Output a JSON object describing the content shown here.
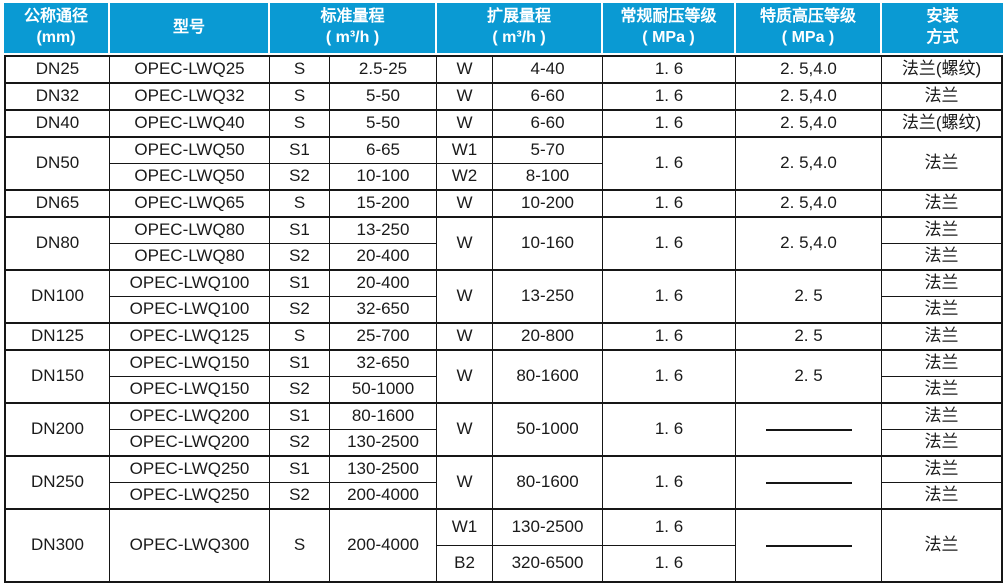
{
  "colors": {
    "header_bg": "#0a9ad3",
    "header_text": "#ffffff",
    "grid_border": "#161616",
    "body_text": "#1a1a1a"
  },
  "header": {
    "columns": [
      {
        "key": "diameter",
        "line1": "公称通径",
        "line2": "(mm)"
      },
      {
        "key": "model",
        "line1": "型号",
        "line2": ""
      },
      {
        "key": "std",
        "line1": "标准量程",
        "line2": "( m³/h )"
      },
      {
        "key": "ext",
        "line1": "扩展量程",
        "line2": "( m³/h )"
      },
      {
        "key": "normal",
        "line1": "常规耐压等级",
        "line2": "( MPa )"
      },
      {
        "key": "special",
        "line1": "特质高压等级",
        "line2": "( MPa )"
      },
      {
        "key": "install",
        "line1": "安装",
        "line2": "方式"
      }
    ]
  },
  "groups": [
    {
      "diameter": "DN25",
      "rows": [
        {
          "model": "OPEC-LWQ25",
          "std_code": "S",
          "std_range": "2.5-25",
          "ext_code": "W",
          "ext_range": "4-40",
          "normal": "1. 6",
          "special": "2. 5,4.0",
          "install": "法兰(螺纹)"
        }
      ]
    },
    {
      "diameter": "DN32",
      "rows": [
        {
          "model": "OPEC-LWQ32",
          "std_code": "S",
          "std_range": "5-50",
          "ext_code": "W",
          "ext_range": "6-60",
          "normal": "1. 6",
          "special": "2. 5,4.0",
          "install": "法兰"
        }
      ]
    },
    {
      "diameter": "DN40",
      "rows": [
        {
          "model": "OPEC-LWQ40",
          "std_code": "S",
          "std_range": "5-50",
          "ext_code": "W",
          "ext_range": "6-60",
          "normal": "1. 6",
          "special": "2. 5,4.0",
          "install": "法兰(螺纹)"
        }
      ]
    },
    {
      "diameter": "DN50",
      "rows": [
        {
          "model": "OPEC-LWQ50",
          "std_code": "S1",
          "std_range": "6-65",
          "ext_code": "W1",
          "ext_range": "5-70",
          "normal": "1. 6",
          "special": "2. 5,4.0",
          "install": "法兰"
        },
        {
          "model": "OPEC-LWQ50",
          "std_code": "S2",
          "std_range": "10-100",
          "ext_code": "W2",
          "ext_range": "8-100",
          "normal": null,
          "special": null,
          "install": null
        }
      ]
    },
    {
      "diameter": "DN65",
      "rows": [
        {
          "model": "OPEC-LWQ65",
          "std_code": "S",
          "std_range": "15-200",
          "ext_code": "W",
          "ext_range": "10-200",
          "normal": "1. 6",
          "special": "2. 5,4.0",
          "install": "法兰"
        }
      ]
    },
    {
      "diameter": "DN80",
      "rows": [
        {
          "model": "OPEC-LWQ80",
          "std_code": "S1",
          "std_range": "13-250",
          "ext_code": "W",
          "ext_range": "10-160",
          "normal": "1. 6",
          "special": "2. 5,4.0",
          "install": "法兰"
        },
        {
          "model": "OPEC-LWQ80",
          "std_code": "S2",
          "std_range": "20-400",
          "ext_code": null,
          "ext_range": null,
          "normal": null,
          "special": null,
          "install": "法兰"
        }
      ]
    },
    {
      "diameter": "DN100",
      "rows": [
        {
          "model": "OPEC-LWQ100",
          "std_code": "S1",
          "std_range": "20-400",
          "ext_code": "W",
          "ext_range": "13-250",
          "normal": "1. 6",
          "special": "2. 5",
          "install": "法兰"
        },
        {
          "model": "OPEC-LWQ100",
          "std_code": "S2",
          "std_range": "32-650",
          "ext_code": null,
          "ext_range": null,
          "normal": null,
          "special": null,
          "install": "法兰"
        }
      ]
    },
    {
      "diameter": "DN125",
      "rows": [
        {
          "model": "OPEC-LWQ125",
          "std_code": "S",
          "std_range": "25-700",
          "ext_code": "W",
          "ext_range": "20-800",
          "normal": "1. 6",
          "special": "2. 5",
          "install": "法兰"
        }
      ]
    },
    {
      "diameter": "DN150",
      "rows": [
        {
          "model": "OPEC-LWQ150",
          "std_code": "S1",
          "std_range": "32-650",
          "ext_code": "W",
          "ext_range": "80-1600",
          "normal": "1. 6",
          "special": "2. 5",
          "install": "法兰"
        },
        {
          "model": "OPEC-LWQ150",
          "std_code": "S2",
          "std_range": "50-1000",
          "ext_code": null,
          "ext_range": null,
          "normal": null,
          "special": null,
          "install": "法兰"
        }
      ]
    },
    {
      "diameter": "DN200",
      "rows": [
        {
          "model": "OPEC-LWQ200",
          "std_code": "S1",
          "std_range": "80-1600",
          "ext_code": "W",
          "ext_range": "50-1000",
          "normal": "1. 6",
          "special": "———",
          "install": "法兰"
        },
        {
          "model": "OPEC-LWQ200",
          "std_code": "S2",
          "std_range": "130-2500",
          "ext_code": null,
          "ext_range": null,
          "normal": null,
          "special": null,
          "install": "法兰"
        }
      ]
    },
    {
      "diameter": "DN250",
      "rows": [
        {
          "model": "OPEC-LWQ250",
          "std_code": "S1",
          "std_range": "130-2500",
          "ext_code": "W",
          "ext_range": "80-1600",
          "normal": "1. 6",
          "special": "———",
          "install": "法兰"
        },
        {
          "model": "OPEC-LWQ250",
          "std_code": "S2",
          "std_range": "200-4000",
          "ext_code": null,
          "ext_range": null,
          "normal": null,
          "special": null,
          "install": "法兰"
        }
      ]
    },
    {
      "diameter": "DN300",
      "tall": true,
      "rows": [
        {
          "model": "OPEC-LWQ300",
          "std_code": "S",
          "std_range": "200-4000",
          "ext_code": "W1",
          "ext_range": "130-2500",
          "normal": "1. 6",
          "special": "———",
          "install": "法兰"
        },
        {
          "model": null,
          "std_code": null,
          "std_range": null,
          "ext_code": "B2",
          "ext_range": "320-6500",
          "normal": "1. 6",
          "special": null,
          "install": null
        }
      ]
    }
  ]
}
